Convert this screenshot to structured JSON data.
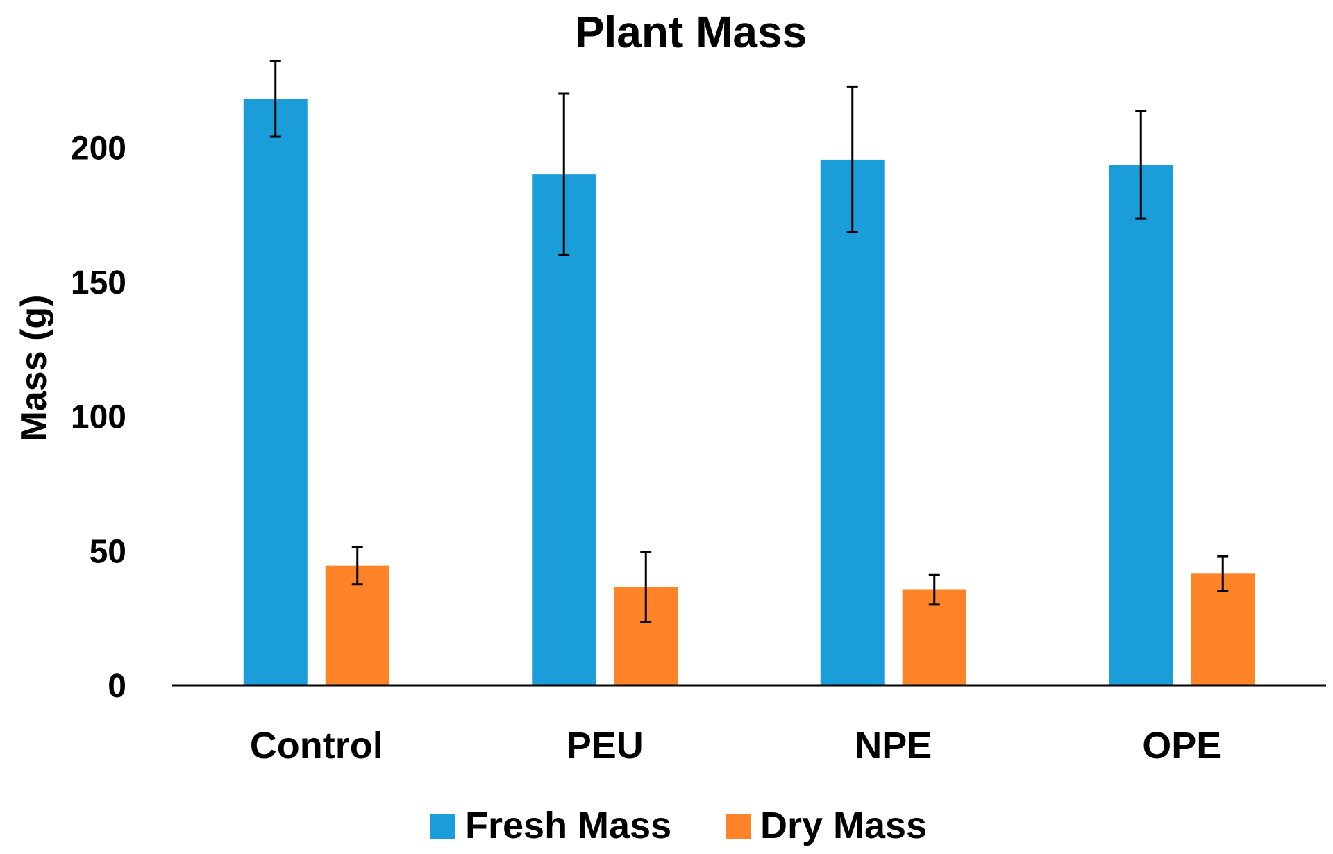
{
  "chart_data": {
    "type": "bar",
    "title": "Plant Mass",
    "xlabel": "",
    "ylabel": "Mass (g)",
    "ylim": [
      0,
      220
    ],
    "yticks": [
      0,
      50,
      100,
      150,
      200
    ],
    "categories": [
      "Control",
      "PEU",
      "NPE",
      "OPE"
    ],
    "series": [
      {
        "name": "Fresh Mass",
        "color": "#1b9dd9",
        "values": [
          218,
          190,
          195.5,
          193.5
        ],
        "errors": [
          14,
          30,
          27,
          20
        ]
      },
      {
        "name": "Dry Mass",
        "color": "#fe8427",
        "values": [
          44.5,
          36.5,
          35.5,
          41.5
        ],
        "errors": [
          7,
          13,
          5.5,
          6.5
        ]
      }
    ],
    "legend_position": "bottom"
  }
}
